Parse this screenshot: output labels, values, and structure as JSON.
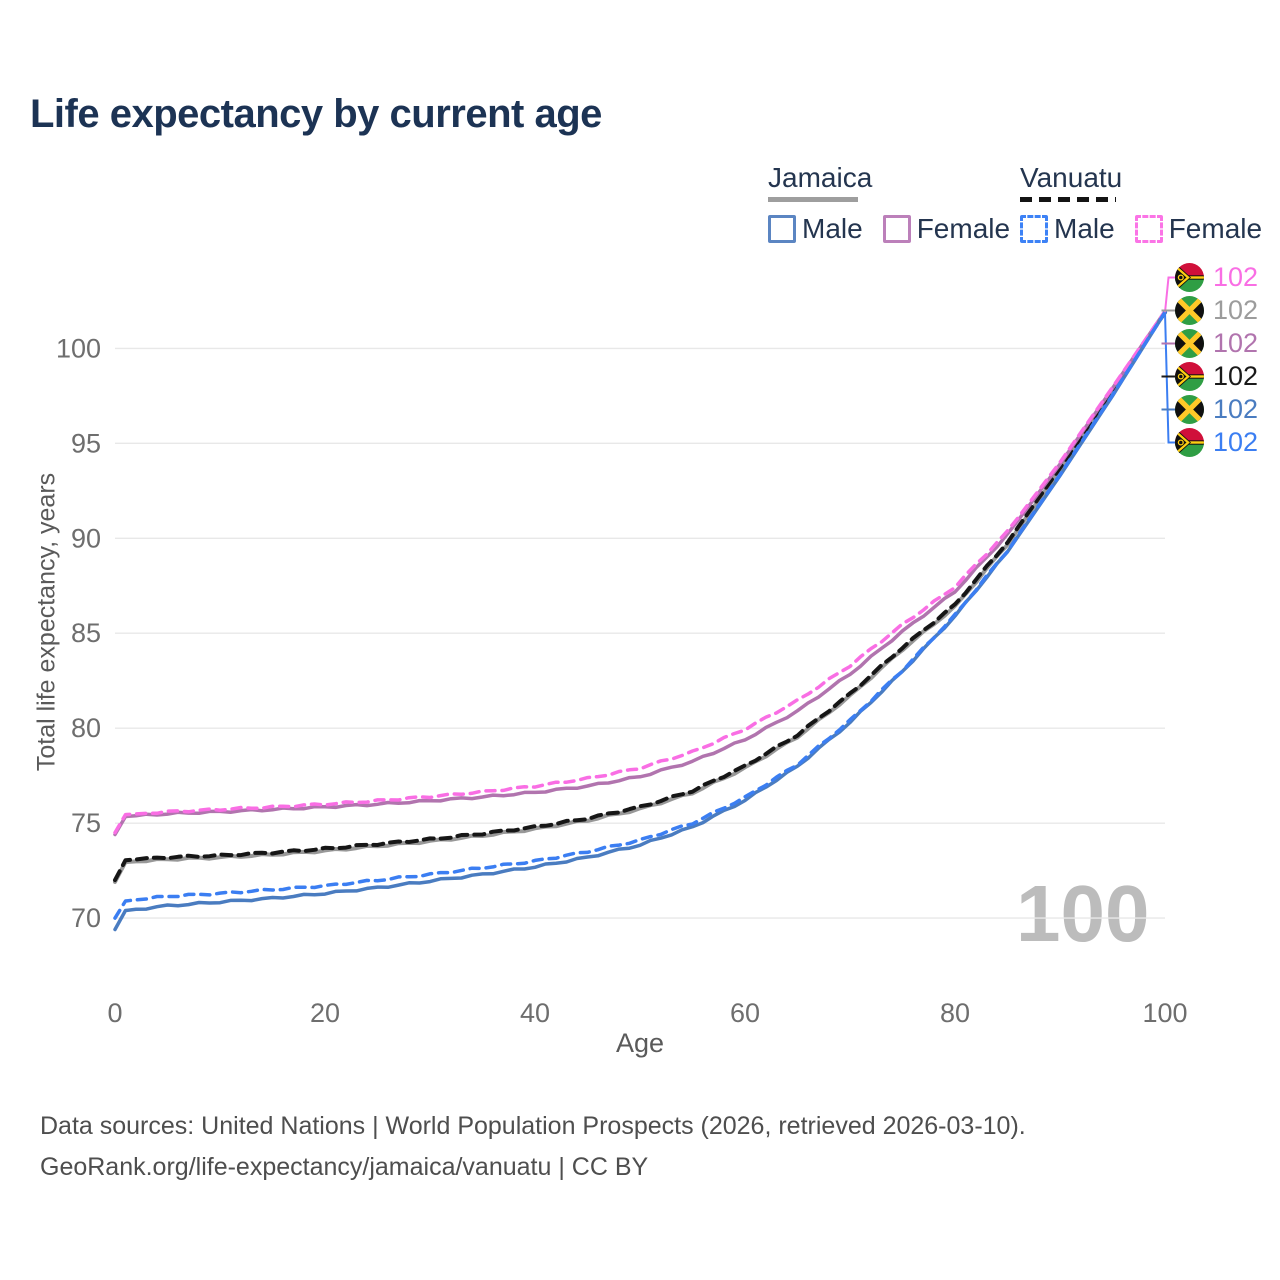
{
  "title": "Life expectancy by current age",
  "legend": {
    "groups": [
      {
        "title": "Jamaica",
        "line_style": "solid",
        "underline_color": "#9e9e9e",
        "items": [
          {
            "label": "Male",
            "color": "#5b85c2",
            "dashed": false
          },
          {
            "label": "Female",
            "color": "#bc80ba",
            "dashed": false
          }
        ]
      },
      {
        "title": "Vanuatu",
        "line_style": "dashed",
        "underline_color": "#141414",
        "items": [
          {
            "label": "Male",
            "color": "#3d82f6",
            "dashed": true
          },
          {
            "label": "Female",
            "color": "#fb74e6",
            "dashed": true
          }
        ]
      }
    ]
  },
  "chart_data": {
    "type": "line",
    "title": "Life expectancy by current age",
    "xlabel": "Age",
    "ylabel": "Total life expectancy, years",
    "xlim": [
      0,
      100
    ],
    "ylim": [
      68.9,
      102.6
    ],
    "x_ticks": [
      0,
      20,
      40,
      60,
      80,
      100
    ],
    "y_ticks": [
      70,
      75,
      80,
      85,
      90,
      95,
      100
    ],
    "grid": "horizontal",
    "gridline_color": "#e8e8e8",
    "watermark": "100",
    "x": [
      0,
      1,
      5,
      10,
      15,
      20,
      25,
      30,
      35,
      40,
      45,
      50,
      55,
      60,
      65,
      70,
      75,
      80,
      85,
      90,
      95,
      100
    ],
    "series": [
      {
        "name": "Jamaica",
        "country": "Jamaica",
        "sex": "all",
        "color": "#989898",
        "dash": null,
        "width": 4,
        "values": [
          71.9,
          72.95,
          73.1,
          73.2,
          73.35,
          73.55,
          73.8,
          74.05,
          74.35,
          74.7,
          75.15,
          75.75,
          76.6,
          77.9,
          79.55,
          81.7,
          84.15,
          86.4,
          89.7,
          93.6,
          97.7,
          101.9
        ]
      },
      {
        "name": "Vanuatu",
        "country": "Vanuatu",
        "sex": "all",
        "color": "#161616",
        "dash": "10 7",
        "width": 4,
        "values": [
          72.0,
          73.05,
          73.2,
          73.3,
          73.45,
          73.65,
          73.9,
          74.15,
          74.45,
          74.8,
          75.25,
          75.85,
          76.7,
          78.0,
          79.65,
          81.8,
          84.25,
          86.5,
          89.8,
          93.7,
          97.75,
          101.9
        ]
      },
      {
        "name": "Jamaica Female",
        "country": "Jamaica",
        "sex": "female",
        "color": "#b174ae",
        "dash": null,
        "width": 3.5,
        "values": [
          74.4,
          75.35,
          75.5,
          75.6,
          75.72,
          75.85,
          76.0,
          76.18,
          76.38,
          76.62,
          76.95,
          77.45,
          78.25,
          79.4,
          80.9,
          82.85,
          85.1,
          87.2,
          90.2,
          93.9,
          97.9,
          101.95
        ]
      },
      {
        "name": "Vanuatu Female",
        "country": "Vanuatu",
        "sex": "female",
        "color": "#f96ee4",
        "dash": "9 7",
        "width": 3.5,
        "values": [
          74.5,
          75.45,
          75.6,
          75.72,
          75.85,
          76.0,
          76.18,
          76.4,
          76.65,
          76.95,
          77.35,
          77.9,
          78.75,
          79.95,
          81.45,
          83.3,
          85.45,
          87.45,
          90.35,
          94.0,
          97.95,
          101.95
        ]
      },
      {
        "name": "Jamaica Male",
        "country": "Jamaica",
        "sex": "male",
        "color": "#4a7cc0",
        "dash": null,
        "width": 3.5,
        "values": [
          69.4,
          70.4,
          70.65,
          70.85,
          71.05,
          71.3,
          71.6,
          71.95,
          72.3,
          72.7,
          73.2,
          73.85,
          74.8,
          76.2,
          78.0,
          80.3,
          83.0,
          85.9,
          89.3,
          93.3,
          97.5,
          101.9
        ]
      },
      {
        "name": "Vanuatu Male",
        "country": "Vanuatu",
        "sex": "male",
        "color": "#3b7ef2",
        "dash": "9 7",
        "width": 3.5,
        "values": [
          70.0,
          70.9,
          71.15,
          71.3,
          71.5,
          71.7,
          72.0,
          72.3,
          72.65,
          73.0,
          73.5,
          74.1,
          75.0,
          76.35,
          78.1,
          80.4,
          83.05,
          85.95,
          89.35,
          93.35,
          97.55,
          101.9
        ]
      }
    ],
    "end_labels": [
      {
        "flag": "vanuatu",
        "series": "Vanuatu Female",
        "value": "102",
        "color": "#f96ee4"
      },
      {
        "flag": "jamaica",
        "series": "Jamaica",
        "value": "102",
        "color": "#9c9c9c"
      },
      {
        "flag": "jamaica",
        "series": "Jamaica Female",
        "value": "102",
        "color": "#b174ae"
      },
      {
        "flag": "vanuatu",
        "series": "Vanuatu",
        "value": "102",
        "color": "#1a1a1a"
      },
      {
        "flag": "jamaica",
        "series": "Jamaica Male",
        "value": "102",
        "color": "#4a7cc0"
      },
      {
        "flag": "vanuatu",
        "series": "Vanuatu Male",
        "value": "102",
        "color": "#3b7ef2"
      }
    ]
  },
  "footer": {
    "line1": "Data sources: United Nations | World Population Prospects (2026, retrieved 2026-03-10).",
    "line2": "GeoRank.org/life-expectancy/jamaica/vanuatu | CC BY"
  }
}
